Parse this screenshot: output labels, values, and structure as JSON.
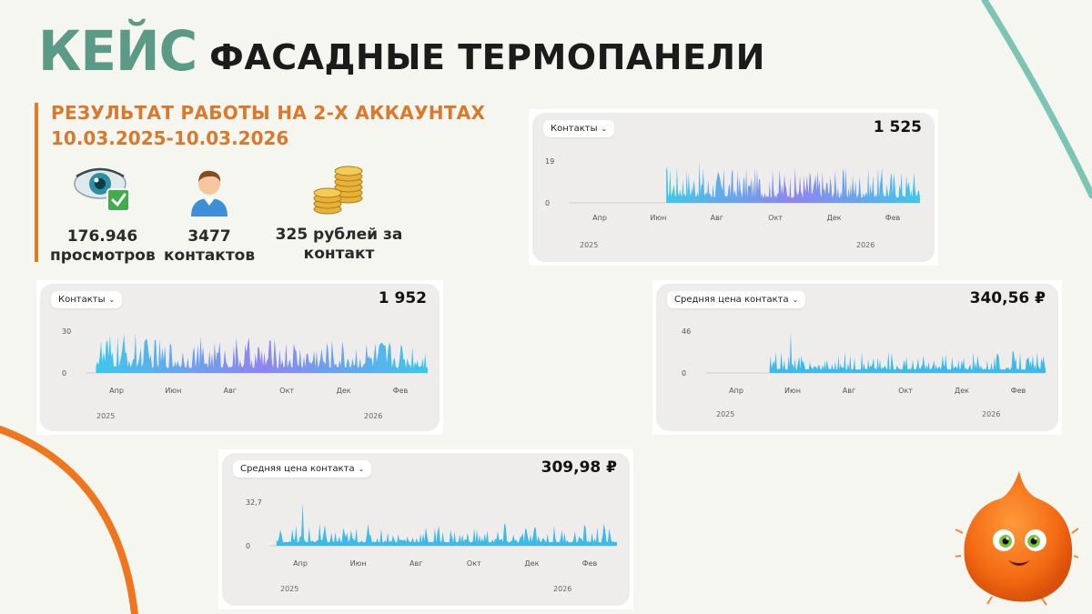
{
  "title": {
    "keis": "КЕЙС",
    "main": "ФАСАДНЫЕ ТЕРМОПАНЕЛИ"
  },
  "result": {
    "title": "РЕЗУЛЬТАТ РАБОТЫ НА 2-Х АККАУНТАХ",
    "date": "10.03.2025-10.03.2026"
  },
  "stats": [
    {
      "icon": "eye-check-icon",
      "value": "176.946",
      "label": "просмотров"
    },
    {
      "icon": "user-icon",
      "value": "3477",
      "label": "контактов"
    },
    {
      "icon": "coins-icon",
      "value": "325 рублей за",
      "label": "контакт"
    }
  ],
  "cards": [
    {
      "dropdown": "Контакты",
      "total": "1 525"
    },
    {
      "dropdown": "Контакты",
      "total": "1 952"
    },
    {
      "dropdown": "Средняя цена контакта",
      "total": "340,56 ₽"
    },
    {
      "dropdown": "Средняя цена контакта",
      "total": "309,98 ₽"
    }
  ],
  "chart_data": [
    {
      "type": "area",
      "ylim": [
        0,
        19
      ],
      "yticks": [
        "19",
        "0"
      ],
      "xticks": [
        "Апр",
        "Июн",
        "Авг",
        "Окт",
        "Дек",
        "Фев"
      ],
      "years": [
        "2025",
        "2026"
      ],
      "colors": [
        "#8a7ff0",
        "#33c6ea"
      ]
    },
    {
      "type": "area",
      "ylim": [
        0,
        30
      ],
      "yticks": [
        "30",
        "0"
      ],
      "xticks": [
        "Апр",
        "Июн",
        "Авг",
        "Окт",
        "Дек",
        "Фев"
      ],
      "years": [
        "2025",
        "2026"
      ],
      "colors": [
        "#8a7ff0",
        "#33c6ea"
      ]
    },
    {
      "type": "area",
      "ylim": [
        0,
        46
      ],
      "yticks": [
        "46",
        "0"
      ],
      "xticks": [
        "Апр",
        "Июн",
        "Авг",
        "Окт",
        "Дек",
        "Фев"
      ],
      "years": [
        "2025",
        "2026"
      ],
      "colors": [
        "#33b7ea",
        "#33b7ea"
      ]
    },
    {
      "type": "area",
      "ylim": [
        0,
        32.7
      ],
      "yticks": [
        "32,7",
        "0"
      ],
      "xticks": [
        "Апр",
        "Июн",
        "Авг",
        "Окт",
        "Дек",
        "Фев"
      ],
      "years": [
        "2025",
        "2026"
      ],
      "colors": [
        "#33b7ea",
        "#33b7ea"
      ]
    }
  ],
  "colors": {
    "accent_green": "#5a9a87",
    "accent_orange": "#e57a23",
    "teal_arc": "#7cc4b4"
  }
}
